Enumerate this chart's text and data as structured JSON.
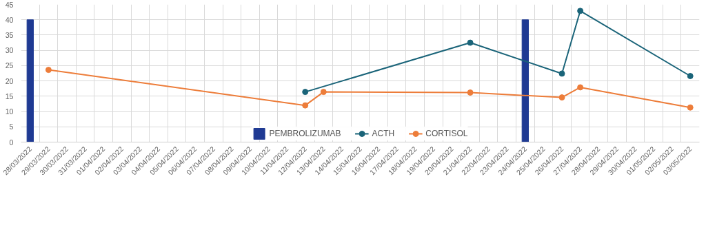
{
  "chart_data": {
    "type": "line",
    "categories": [
      "28/03/2022",
      "29/03/2022",
      "30/03/2022",
      "31/03/2022",
      "01/04/2022",
      "02/04/2022",
      "03/04/2022",
      "04/04/2022",
      "05/04/2022",
      "06/04/2022",
      "07/04/2022",
      "08/04/2022",
      "09/04/2022",
      "10/04/2022",
      "11/04/2022",
      "12/04/2022",
      "13/04/2022",
      "14/04/2022",
      "15/04/2022",
      "16/04/2022",
      "17/04/2022",
      "18/04/2022",
      "19/04/2022",
      "20/04/2022",
      "21/04/2022",
      "22/04/2022",
      "23/04/2022",
      "24/04/2022",
      "25/04/2022",
      "26/04/2022",
      "27/04/2022",
      "28/04/2022",
      "29/04/2022",
      "30/04/2022",
      "01/05/2022",
      "02/05/2022",
      "03/05/2022"
    ],
    "series": [
      {
        "name": "PEMBROLIZUMAB",
        "type": "bar",
        "color": "#1f3a93",
        "values": [
          40,
          null,
          null,
          null,
          null,
          null,
          null,
          null,
          null,
          null,
          null,
          null,
          null,
          null,
          null,
          null,
          null,
          null,
          null,
          null,
          null,
          null,
          null,
          null,
          null,
          null,
          null,
          40,
          null,
          null,
          null,
          null,
          null,
          null,
          null,
          null,
          null
        ]
      },
      {
        "name": "ACTH",
        "color": "#1a6479",
        "values": [
          null,
          null,
          null,
          null,
          null,
          null,
          null,
          null,
          null,
          null,
          null,
          null,
          null,
          null,
          null,
          16.4,
          null,
          null,
          null,
          null,
          null,
          null,
          null,
          null,
          32.5,
          null,
          null,
          null,
          null,
          22.4,
          42.9,
          null,
          null,
          null,
          null,
          null,
          21.6
        ]
      },
      {
        "name": "CORTISOL",
        "color": "#ed7d3a",
        "values": [
          null,
          23.6,
          null,
          null,
          null,
          null,
          null,
          null,
          null,
          null,
          null,
          null,
          null,
          null,
          null,
          12,
          16.4,
          null,
          null,
          null,
          null,
          null,
          null,
          null,
          16.2,
          null,
          null,
          null,
          null,
          14.6,
          17.9,
          null,
          null,
          null,
          null,
          null,
          11.3
        ]
      }
    ],
    "ylim": [
      0,
      45
    ],
    "yticks": [
      0,
      5,
      10,
      15,
      20,
      25,
      30,
      35,
      40,
      45
    ],
    "grid": true,
    "legend": "bottom",
    "marker": "circle"
  }
}
